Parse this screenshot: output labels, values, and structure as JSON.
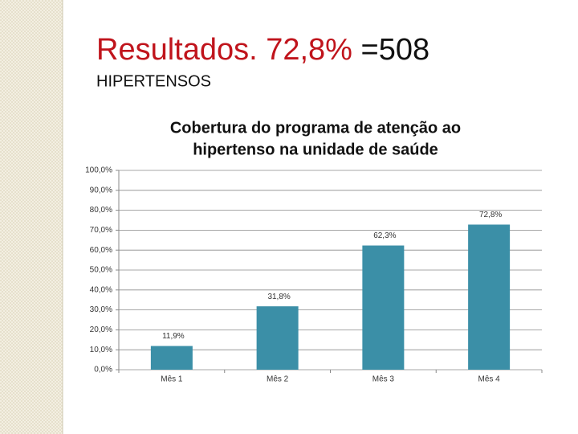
{
  "slide": {
    "title": [
      "Resultados. 72,8%",
      "=508"
    ],
    "subtitle": "HIPERTENSOS"
  },
  "chart_data": {
    "type": "bar",
    "title": [
      "Cobertura do programa de atenção ao",
      "hipertenso na unidade de saúde"
    ],
    "categories": [
      "Mês 1",
      "Mês 2",
      "Mês 3",
      "Mês 4"
    ],
    "values": [
      11.9,
      31.8,
      62.3,
      72.8
    ],
    "value_labels": [
      "11,9%",
      "31,8%",
      "62,3%",
      "72,8%"
    ],
    "color": "#3b8fa7",
    "ylim": [
      0,
      100
    ],
    "yticks": [
      {
        "value": 0,
        "label": "0,0%"
      },
      {
        "value": 10,
        "label": "10,0%"
      },
      {
        "value": 20,
        "label": "20,0%"
      },
      {
        "value": 30,
        "label": "30,0%"
      },
      {
        "value": 40,
        "label": "40,0%"
      },
      {
        "value": 50,
        "label": "50,0%"
      },
      {
        "value": 60,
        "label": "60,0%"
      },
      {
        "value": 70,
        "label": "70,0%"
      },
      {
        "value": 80,
        "label": "80,0%"
      },
      {
        "value": 90,
        "label": "90,0%"
      },
      {
        "value": 100,
        "label": "100,0%"
      }
    ],
    "grid": true
  }
}
